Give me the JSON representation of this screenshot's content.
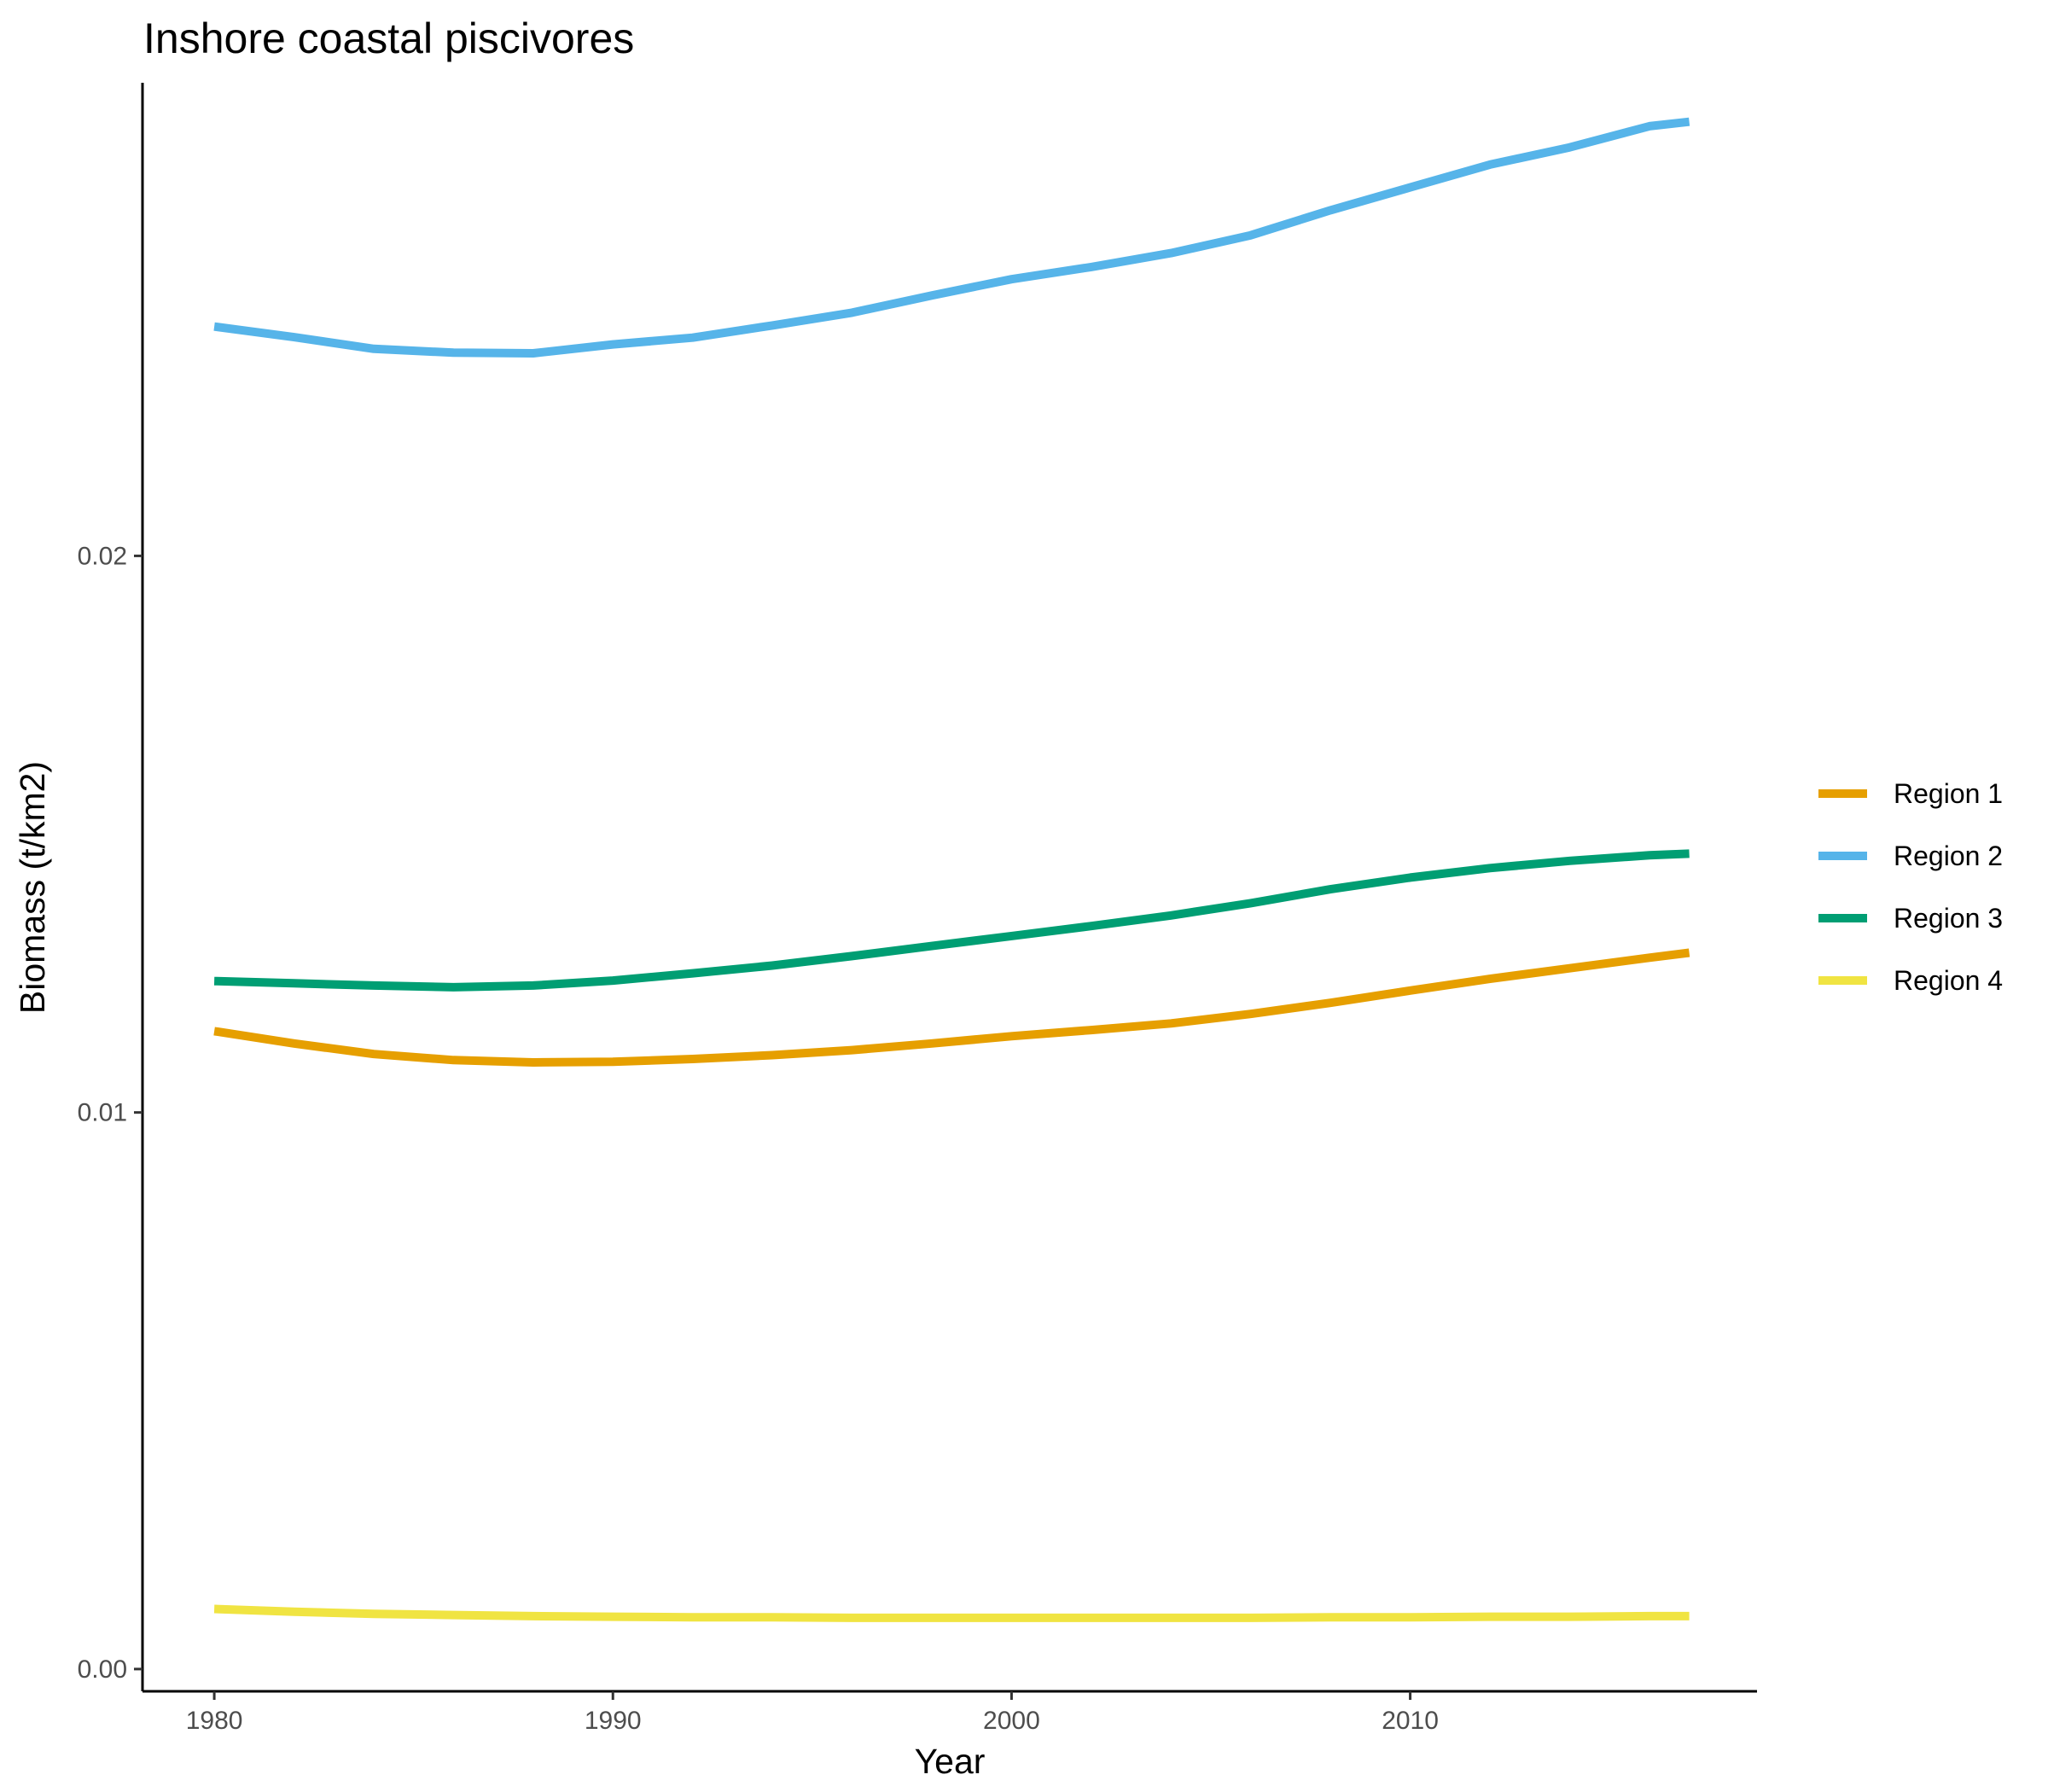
{
  "chart_data": {
    "type": "line",
    "title": "Inshore coastal piscivores",
    "xlabel": "Year",
    "ylabel": "Biomass (t/km2)",
    "xlim": [
      1978.2,
      2018.7
    ],
    "ylim": [
      -0.0004,
      0.0285
    ],
    "xticks": [
      1980,
      1990,
      2000,
      2010
    ],
    "xtick_labels": [
      "1980",
      "1990",
      "2000",
      "2010"
    ],
    "yticks": [
      0,
      0.01,
      0.02
    ],
    "ytick_labels": [
      "0.00",
      "0.01",
      "0.02"
    ],
    "grid": false,
    "legend_position": "right",
    "x": [
      1980,
      1982,
      1984,
      1986,
      1988,
      1990,
      1992,
      1994,
      1996,
      1998,
      2000,
      2002,
      2004,
      2006,
      2008,
      2010,
      2012,
      2014,
      2016,
      2017
    ],
    "series": [
      {
        "name": "Region 1",
        "color": "#E69F00",
        "values": [
          0.01146,
          0.01124,
          0.01105,
          0.01094,
          0.0109,
          0.01091,
          0.01096,
          0.01103,
          0.01112,
          0.01124,
          0.01137,
          0.01148,
          0.0116,
          0.01177,
          0.01197,
          0.01219,
          0.0124,
          0.01259,
          0.01278,
          0.01287
        ]
      },
      {
        "name": "Region 2",
        "color": "#56B4E9",
        "values": [
          0.02412,
          0.02393,
          0.02372,
          0.02365,
          0.02364,
          0.0238,
          0.02392,
          0.02414,
          0.02437,
          0.02468,
          0.02497,
          0.02519,
          0.02544,
          0.02576,
          0.02621,
          0.02662,
          0.02703,
          0.02734,
          0.02772,
          0.0278
        ]
      },
      {
        "name": "Region 3",
        "color": "#009E73",
        "values": [
          0.01236,
          0.01232,
          0.01228,
          0.01225,
          0.01228,
          0.01237,
          0.0125,
          0.01264,
          0.01281,
          0.01299,
          0.01317,
          0.01335,
          0.01354,
          0.01376,
          0.01401,
          0.01422,
          0.01439,
          0.01452,
          0.01462,
          0.01465
        ]
      },
      {
        "name": "Region 4",
        "color": "#F0E442",
        "values": [
          0.00108,
          0.00103,
          0.00099,
          0.00097,
          0.00095,
          0.00094,
          0.00093,
          0.00093,
          0.00092,
          0.00092,
          0.00092,
          0.00092,
          0.00092,
          0.00092,
          0.00093,
          0.00093,
          0.00094,
          0.00094,
          0.00095,
          0.00095
        ]
      }
    ]
  }
}
